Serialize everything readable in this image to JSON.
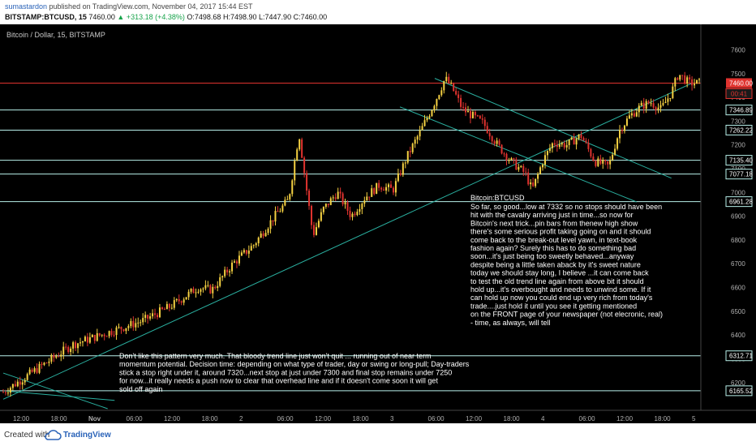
{
  "header": {
    "author": "sumastardon",
    "published_text": "published on TradingView.com, November 04, 2017 15:44 EST",
    "symbol": "BITSTAMP:BTCUSD, 15",
    "last": "7460.00",
    "change": "▲ +313.18 (+4.38%)",
    "open": "O:7498.68",
    "high": "H:7498.90",
    "low": "L:7447.90",
    "close": "C:7460.00"
  },
  "chart_title": "Bitcoin / Dollar, 15, BITSTAMP",
  "price_badge": {
    "price": "7460.00",
    "countdown": "00:41"
  },
  "footer": {
    "created": "Created with",
    "brand": "TradingView"
  },
  "colors": {
    "background": "#000000",
    "up": "#f5d142",
    "down": "#e0332f",
    "level_line": "#b8f0ea",
    "trend_line": "#2ab0a0",
    "last_price": "#e0332f"
  },
  "chart_data": {
    "type": "candlestick",
    "title": "Bitcoin / Dollar, 15, BITSTAMP",
    "ylim": [
      6090,
      7680
    ],
    "y_ticks": [
      7600,
      7500,
      7400,
      7300,
      7200,
      7100,
      7000,
      6900,
      6800,
      6700,
      6600,
      6500,
      6400,
      6300,
      6200
    ],
    "x_ticks": [
      "12:00",
      "18:00",
      "Nov",
      "06:00",
      "12:00",
      "18:00",
      "2",
      "06:00",
      "12:00",
      "18:00",
      "3",
      "06:00",
      "12:00",
      "18:00",
      "4",
      "06:00",
      "12:00",
      "18:00",
      "5"
    ],
    "horizontal_levels": [
      {
        "label": "7460.00",
        "value": 7460,
        "style": "last-price"
      },
      {
        "label": "7346.89",
        "value": 7346.89
      },
      {
        "label": "7262.22",
        "value": 7262.22
      },
      {
        "label": "7135.40",
        "value": 7135.4
      },
      {
        "label": "7077.18",
        "value": 7077.18
      },
      {
        "label": "6961.28",
        "value": 6961.28
      },
      {
        "label": "6312.71",
        "value": 6312.71
      },
      {
        "label": "6165.52",
        "value": 6165.52
      }
    ],
    "trendlines": [
      {
        "t0": 0.0,
        "v0": 6130,
        "t1": 0.99,
        "v1": 7460
      },
      {
        "t0": 0.62,
        "v0": 7480,
        "t1": 0.96,
        "v1": 7060
      },
      {
        "t0": 0.57,
        "v0": 7360,
        "t1": 0.91,
        "v1": 6960
      },
      {
        "t0": 0.0,
        "v0": 6240,
        "t1": 0.15,
        "v1": 6090
      },
      {
        "t0": 0.0,
        "v0": 6165,
        "t1": 0.16,
        "v1": 6125
      }
    ],
    "path": [
      [
        0,
        6160
      ],
      [
        0.05,
        6260
      ],
      [
        0.1,
        6360
      ],
      [
        0.15,
        6410
      ],
      [
        0.2,
        6460
      ],
      [
        0.24,
        6520
      ],
      [
        0.28,
        6600
      ],
      [
        0.3,
        6590
      ],
      [
        0.33,
        6700
      ],
      [
        0.36,
        6780
      ],
      [
        0.39,
        6900
      ],
      [
        0.41,
        6970
      ],
      [
        0.425,
        7250
      ],
      [
        0.435,
        7030
      ],
      [
        0.445,
        6820
      ],
      [
        0.46,
        6930
      ],
      [
        0.48,
        7000
      ],
      [
        0.5,
        6900
      ],
      [
        0.52,
        6980
      ],
      [
        0.54,
        7030
      ],
      [
        0.56,
        7010
      ],
      [
        0.58,
        7150
      ],
      [
        0.6,
        7260
      ],
      [
        0.62,
        7380
      ],
      [
        0.635,
        7480
      ],
      [
        0.645,
        7440
      ],
      [
        0.66,
        7350
      ],
      [
        0.69,
        7290
      ],
      [
        0.71,
        7200
      ],
      [
        0.73,
        7130
      ],
      [
        0.75,
        7080
      ],
      [
        0.76,
        7010
      ],
      [
        0.775,
        7130
      ],
      [
        0.79,
        7210
      ],
      [
        0.81,
        7200
      ],
      [
        0.83,
        7240
      ],
      [
        0.85,
        7130
      ],
      [
        0.87,
        7110
      ],
      [
        0.885,
        7260
      ],
      [
        0.9,
        7320
      ],
      [
        0.915,
        7360
      ],
      [
        0.93,
        7380
      ],
      [
        0.945,
        7350
      ],
      [
        0.96,
        7420
      ],
      [
        0.97,
        7500
      ],
      [
        0.985,
        7460
      ]
    ],
    "callouts": [
      {
        "title": "Bitcoin:BTCUSD",
        "body": "So far, so good...low at 7332 so no stops should have been hit with the cavalry arriving just in time...so now for Bitcoin's next trick...pin bars from thenew high show there's some serious profit taking going on and it should come back to the break-out level yawn, in text-book fashion again? Surely this has to do something bad soon...it's just being too sweetly behaved...anyway despite being a little taken aback by it's sweet nature today we should stay long, I believe ...it can come back to test the old trend line again from above bit it should hold up...it's overbought and needs to unwind some. If it can hold up now you could end up very rich from today's trade....just hold it until you see it getting mentioned on the FRONT page of your newspaper (not elecronic, real)  - time, as always, will tell"
      },
      {
        "body": "Don't like this pattern very much. That bloody trend line just won't quit ... running out of near term momentum potential. Decision time: depending on what type of trader, day or swing or long-pull; Day-traders stick a stop right under it, around 7320...next stop at just under 7300 and final stop remains under 7250 for now...it really needs a push now to clear that overhead line and if it doesn't come soon it will get sold off again"
      }
    ]
  }
}
